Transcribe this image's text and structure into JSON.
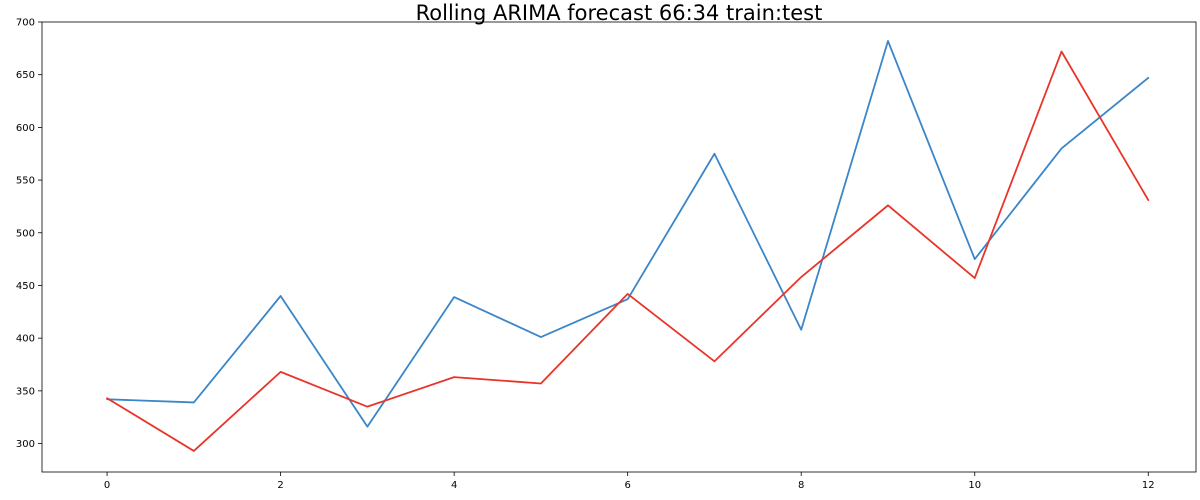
{
  "chart_data": {
    "type": "line",
    "title": "Rolling ARIMA forecast 66:34 train:test",
    "xlabel": "",
    "ylabel": "",
    "x": [
      0,
      1,
      2,
      3,
      4,
      5,
      6,
      7,
      8,
      9,
      10,
      11,
      12
    ],
    "xticks": [
      0,
      2,
      4,
      6,
      8,
      10,
      12
    ],
    "yticks": [
      300,
      350,
      400,
      450,
      500,
      550,
      600,
      650,
      700
    ],
    "xlim": [
      -0.75,
      12.55
    ],
    "ylim": [
      273,
      700
    ],
    "grid": false,
    "legend": false,
    "series": [
      {
        "color": "#3a86c8",
        "values": [
          342,
          339,
          440,
          316,
          439,
          401,
          437,
          575,
          408,
          682,
          475,
          580,
          647
        ]
      },
      {
        "color": "#e8352a",
        "values": [
          343,
          293,
          368,
          335,
          363,
          357,
          442,
          378,
          458,
          526,
          457,
          672,
          531
        ]
      }
    ]
  }
}
